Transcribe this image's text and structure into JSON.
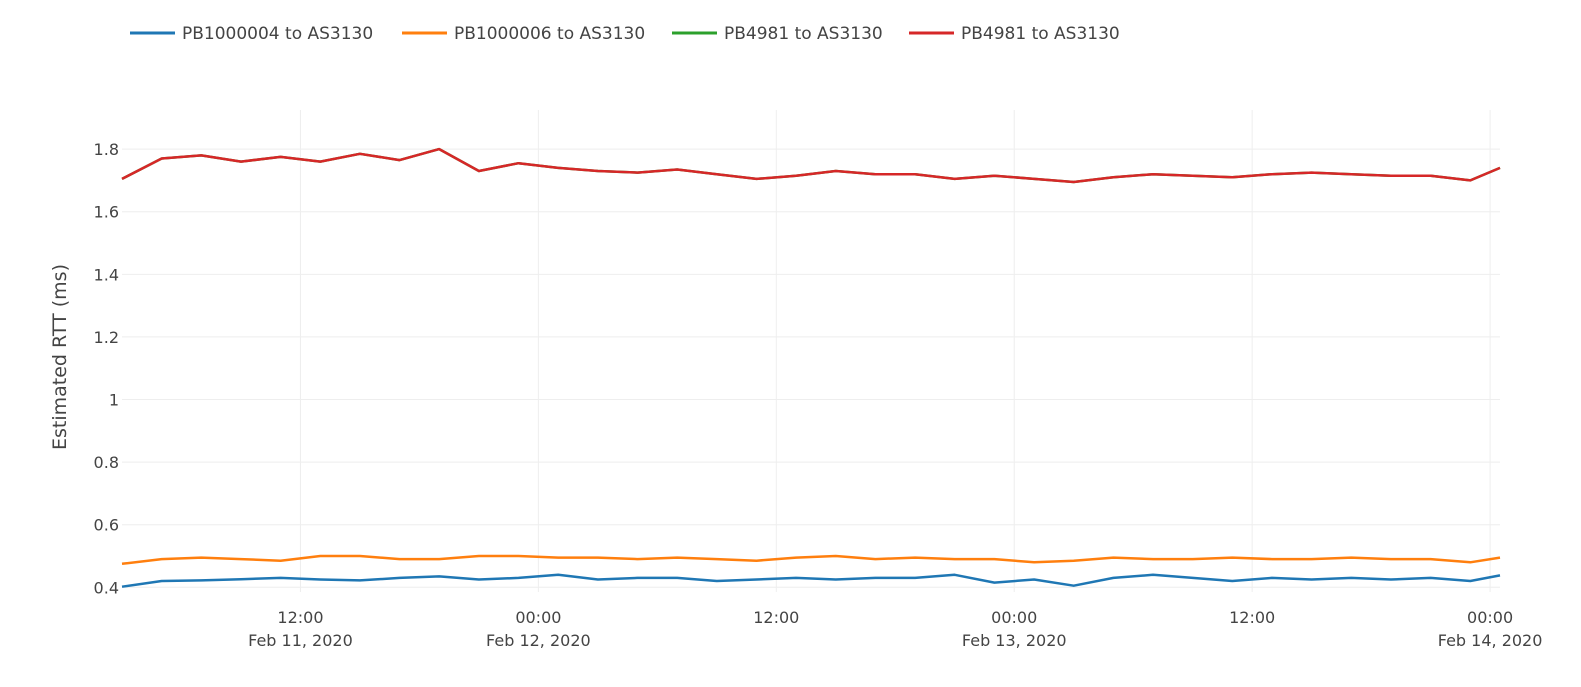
{
  "chart_data": {
    "type": "line",
    "xlabel": "",
    "ylabel": "Estimated RTT (ms)",
    "xlim": [
      "2020-02-11 03:00",
      "2020-02-14 00:30"
    ],
    "ylim": [
      0.385,
      1.925
    ],
    "yticks": [
      0.4,
      0.6,
      0.8,
      1,
      1.2,
      1.4,
      1.6,
      1.8
    ],
    "ytick_labels": [
      "0.4",
      "0.6",
      "0.8",
      "1",
      "1.2",
      "1.4",
      "1.6",
      "1.8"
    ],
    "xticks": [
      {
        "t": "2020-02-11 12:00",
        "line1": "12:00",
        "line2": "Feb 11, 2020"
      },
      {
        "t": "2020-02-12 00:00",
        "line1": "00:00",
        "line2": "Feb 12, 2020"
      },
      {
        "t": "2020-02-12 12:00",
        "line1": "12:00",
        "line2": ""
      },
      {
        "t": "2020-02-13 00:00",
        "line1": "00:00",
        "line2": "Feb 13, 2020"
      },
      {
        "t": "2020-02-13 12:00",
        "line1": "12:00",
        "line2": ""
      },
      {
        "t": "2020-02-14 00:00",
        "line1": "00:00",
        "line2": "Feb 14, 2020"
      }
    ],
    "grid": true,
    "legend_position": "top-left, horizontal",
    "x": [
      "2020-02-11 03:00",
      "2020-02-11 05:00",
      "2020-02-11 07:00",
      "2020-02-11 09:00",
      "2020-02-11 11:00",
      "2020-02-11 13:00",
      "2020-02-11 15:00",
      "2020-02-11 17:00",
      "2020-02-11 19:00",
      "2020-02-11 21:00",
      "2020-02-11 23:00",
      "2020-02-12 01:00",
      "2020-02-12 03:00",
      "2020-02-12 05:00",
      "2020-02-12 07:00",
      "2020-02-12 09:00",
      "2020-02-12 11:00",
      "2020-02-12 13:00",
      "2020-02-12 15:00",
      "2020-02-12 17:00",
      "2020-02-12 19:00",
      "2020-02-12 21:00",
      "2020-02-12 23:00",
      "2020-02-13 01:00",
      "2020-02-13 03:00",
      "2020-02-13 05:00",
      "2020-02-13 07:00",
      "2020-02-13 09:00",
      "2020-02-13 11:00",
      "2020-02-13 13:00",
      "2020-02-13 15:00",
      "2020-02-13 17:00",
      "2020-02-13 19:00",
      "2020-02-13 21:00",
      "2020-02-13 23:00",
      "2020-02-14 00:30"
    ],
    "series": [
      {
        "name": "PB1000004 to AS3130",
        "color": "#1f77b4",
        "values": [
          0.402,
          0.42,
          0.422,
          0.426,
          0.43,
          0.425,
          0.422,
          0.43,
          0.435,
          0.425,
          0.43,
          0.44,
          0.425,
          0.43,
          0.43,
          0.42,
          0.425,
          0.43,
          0.425,
          0.43,
          0.43,
          0.44,
          0.415,
          0.425,
          0.405,
          0.43,
          0.44,
          0.43,
          0.42,
          0.43,
          0.425,
          0.43,
          0.425,
          0.43,
          0.42,
          0.438
        ]
      },
      {
        "name": "PB1000006 to AS3130",
        "color": "#ff7f0e",
        "values": [
          0.475,
          0.49,
          0.495,
          0.49,
          0.485,
          0.5,
          0.5,
          0.49,
          0.49,
          0.5,
          0.5,
          0.495,
          0.495,
          0.49,
          0.495,
          0.49,
          0.485,
          0.495,
          0.5,
          0.49,
          0.495,
          0.49,
          0.49,
          0.48,
          0.485,
          0.495,
          0.49,
          0.49,
          0.495,
          0.49,
          0.49,
          0.495,
          0.49,
          0.49,
          0.48,
          0.495
        ]
      },
      {
        "name": "PB4981 to AS3130",
        "color": "#2ca02c",
        "values": [
          1.705,
          1.77,
          1.78,
          1.76,
          1.775,
          1.76,
          1.785,
          1.765,
          1.8,
          1.73,
          1.755,
          1.74,
          1.73,
          1.725,
          1.735,
          1.72,
          1.705,
          1.715,
          1.73,
          1.72,
          1.72,
          1.705,
          1.715,
          1.705,
          1.695,
          1.71,
          1.72,
          1.715,
          1.71,
          1.72,
          1.725,
          1.72,
          1.715,
          1.715,
          1.7,
          1.74
        ]
      },
      {
        "name": "PB4981 to AS3130",
        "color": "#d62728",
        "values": [
          1.705,
          1.77,
          1.78,
          1.76,
          1.775,
          1.76,
          1.785,
          1.765,
          1.8,
          1.73,
          1.755,
          1.74,
          1.73,
          1.725,
          1.735,
          1.72,
          1.705,
          1.715,
          1.73,
          1.72,
          1.72,
          1.705,
          1.715,
          1.705,
          1.695,
          1.71,
          1.72,
          1.715,
          1.71,
          1.72,
          1.725,
          1.72,
          1.715,
          1.715,
          1.7,
          1.74
        ]
      }
    ]
  }
}
